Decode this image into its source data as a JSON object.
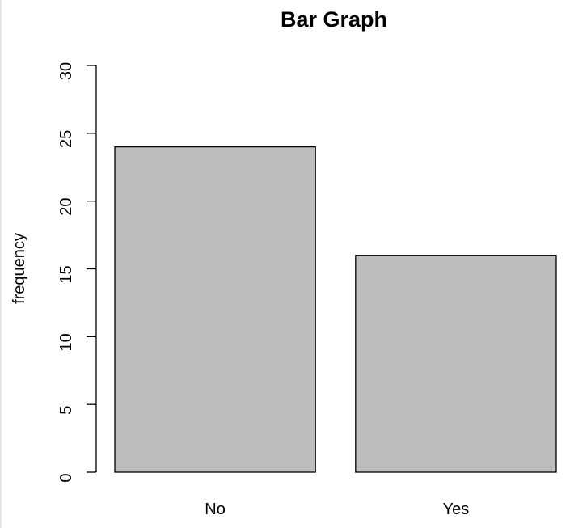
{
  "chart_data": {
    "type": "bar",
    "title": "Bar Graph",
    "xlabel": "",
    "ylabel": "frequency",
    "categories": [
      "No",
      "Yes"
    ],
    "values": [
      24,
      16
    ],
    "ylim": [
      0,
      30
    ],
    "yticks": [
      0,
      5,
      10,
      15,
      20,
      25,
      30
    ],
    "bar_color": "#bebebe",
    "grid": false
  }
}
